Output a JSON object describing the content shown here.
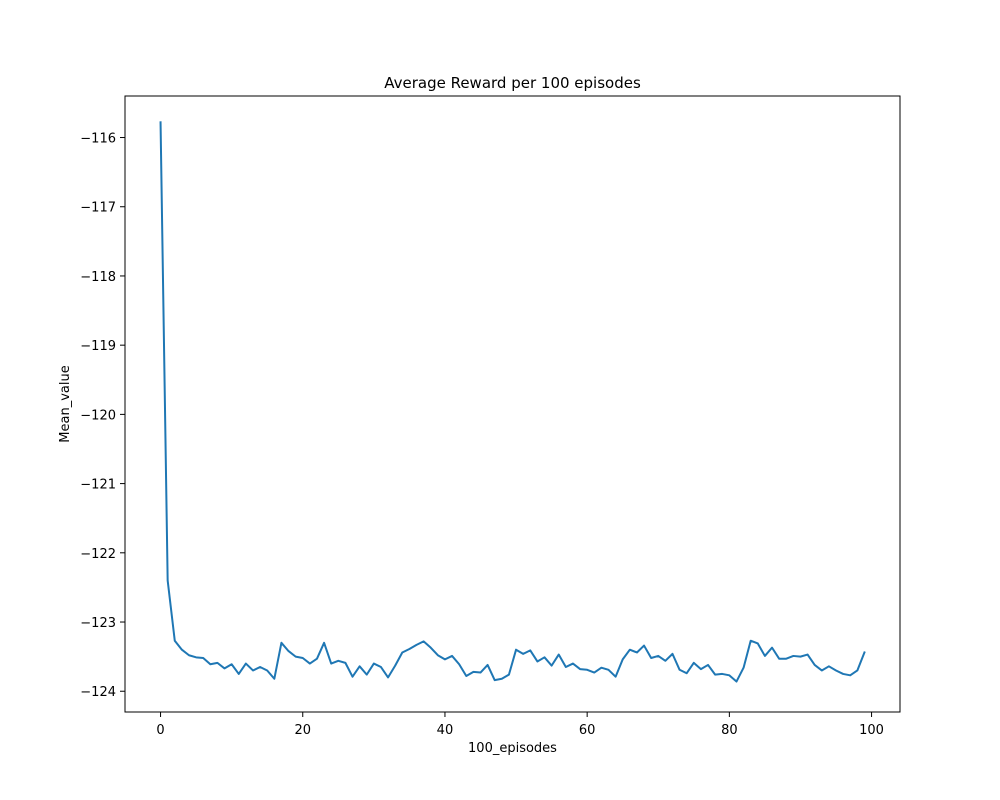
{
  "chart_data": {
    "type": "line",
    "title": "Average Reward per 100 episodes",
    "xlabel": "100_episodes",
    "ylabel": "Mean_value",
    "xlim": [
      -5,
      104
    ],
    "ylim": [
      -124.3,
      -115.4
    ],
    "x_ticks": [
      0,
      20,
      40,
      60,
      80,
      100
    ],
    "x_tick_labels": [
      "0",
      "20",
      "40",
      "60",
      "80",
      "100"
    ],
    "y_ticks": [
      -116,
      -117,
      -118,
      -119,
      -120,
      -121,
      -122,
      -123,
      -124
    ],
    "y_tick_labels": [
      "−116",
      "−117",
      "−118",
      "−119",
      "−120",
      "−121",
      "−122",
      "−123",
      "−124"
    ],
    "grid": false,
    "legend": "none",
    "series": [
      {
        "color": "#1f77b4",
        "x": [
          0,
          1,
          2,
          3,
          4,
          5,
          6,
          7,
          8,
          9,
          10,
          11,
          12,
          13,
          14,
          15,
          16,
          17,
          18,
          19,
          20,
          21,
          22,
          23,
          24,
          25,
          26,
          27,
          28,
          29,
          30,
          31,
          32,
          33,
          34,
          35,
          36,
          37,
          38,
          39,
          40,
          41,
          42,
          43,
          44,
          45,
          46,
          47,
          48,
          49,
          50,
          51,
          52,
          53,
          54,
          55,
          56,
          57,
          58,
          59,
          60,
          61,
          62,
          63,
          64,
          65,
          66,
          67,
          68,
          69,
          70,
          71,
          72,
          73,
          74,
          75,
          76,
          77,
          78,
          79,
          80,
          81,
          82,
          83,
          84,
          85,
          86,
          87,
          88,
          89,
          90,
          91,
          92,
          93,
          94,
          95,
          96,
          97,
          98,
          99
        ],
        "values": [
          -115.78,
          -122.4,
          -123.27,
          -123.4,
          -123.48,
          -123.51,
          -123.52,
          -123.61,
          -123.59,
          -123.67,
          -123.61,
          -123.75,
          -123.6,
          -123.7,
          -123.65,
          -123.7,
          -123.82,
          -123.3,
          -123.42,
          -123.5,
          -123.52,
          -123.6,
          -123.53,
          -123.3,
          -123.6,
          -123.56,
          -123.59,
          -123.79,
          -123.64,
          -123.76,
          -123.6,
          -123.65,
          -123.8,
          -123.63,
          -123.44,
          -123.39,
          -123.33,
          -123.28,
          -123.37,
          -123.48,
          -123.54,
          -123.49,
          -123.61,
          -123.78,
          -123.72,
          -123.73,
          -123.62,
          -123.84,
          -123.82,
          -123.76,
          -123.4,
          -123.46,
          -123.41,
          -123.57,
          -123.51,
          -123.63,
          -123.47,
          -123.65,
          -123.6,
          -123.68,
          -123.69,
          -123.73,
          -123.66,
          -123.69,
          -123.79,
          -123.54,
          -123.4,
          -123.44,
          -123.34,
          -123.52,
          -123.49,
          -123.56,
          -123.46,
          -123.69,
          -123.74,
          -123.59,
          -123.68,
          -123.62,
          -123.76,
          -123.75,
          -123.77,
          -123.86,
          -123.66,
          -123.27,
          -123.31,
          -123.49,
          -123.37,
          -123.53,
          -123.53,
          -123.49,
          -123.5,
          -123.47,
          -123.62,
          -123.7,
          -123.64,
          -123.7,
          -123.75,
          -123.77,
          -123.7,
          -123.44
        ]
      }
    ]
  }
}
